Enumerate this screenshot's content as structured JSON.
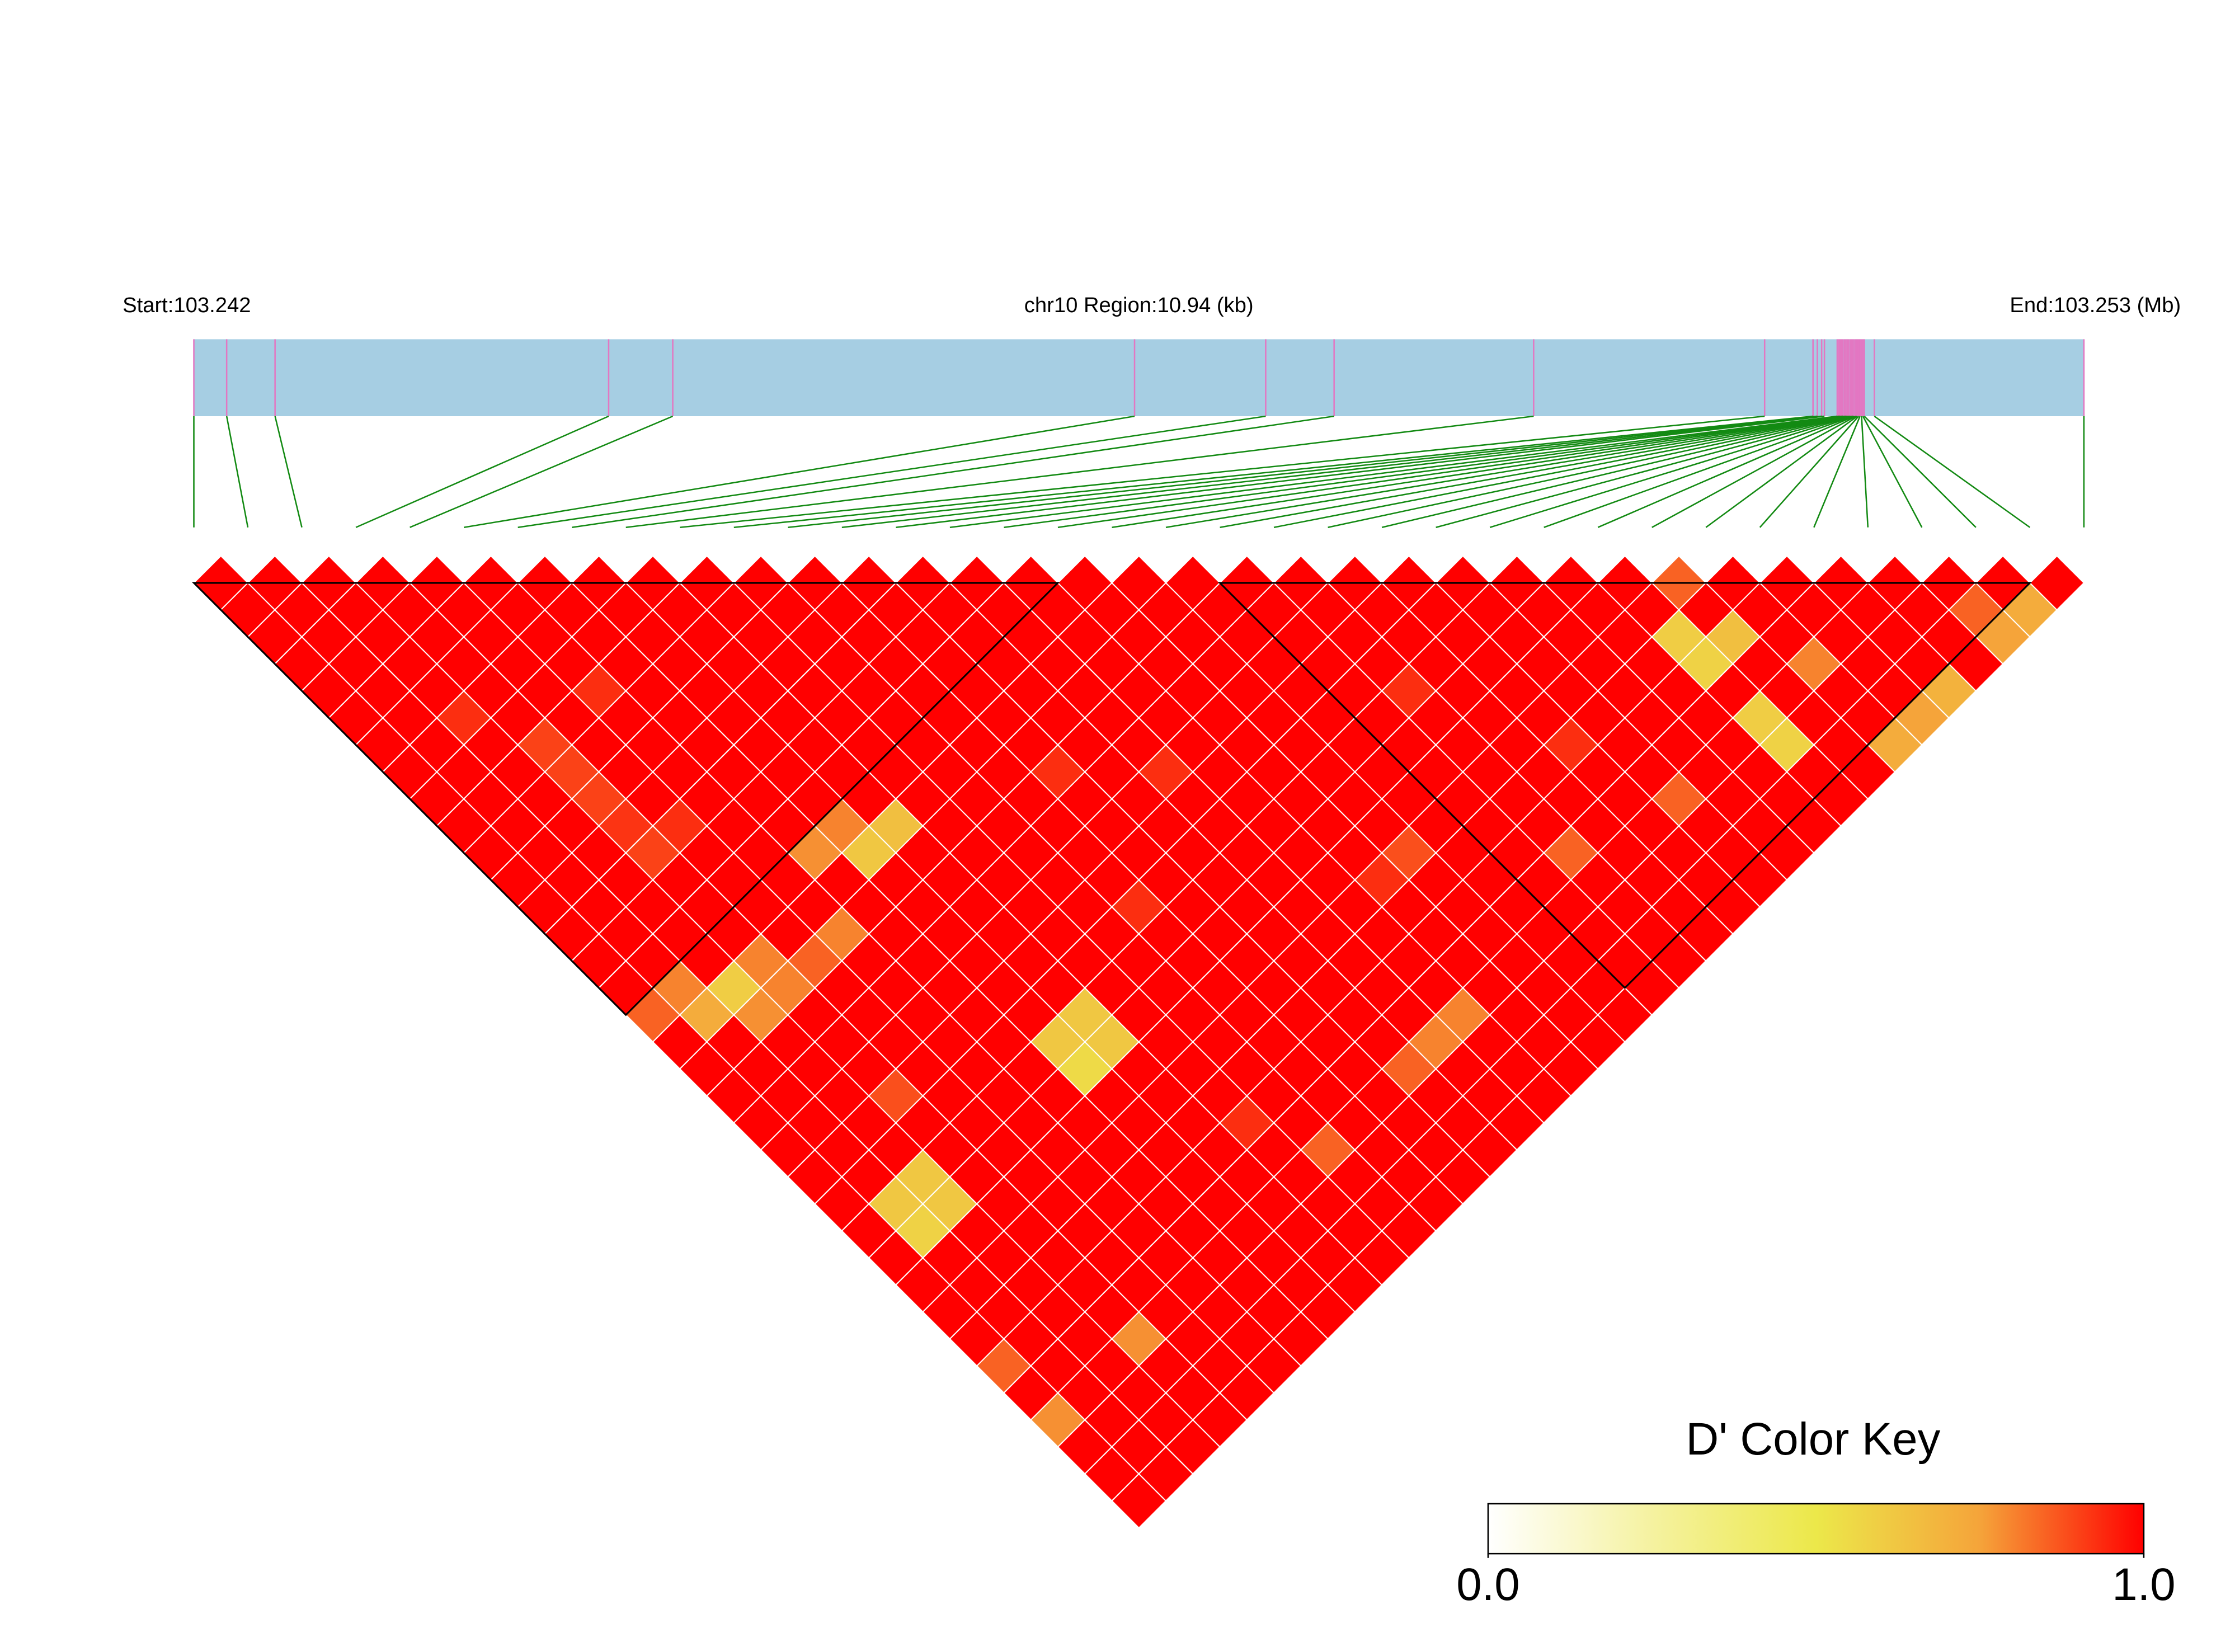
{
  "chart_data": {
    "type": "ld-heatmap",
    "start_label": "Start:103.242",
    "region_label": "chr10 Region:10.94 (kb)",
    "end_label": "End:103.253 (Mb)",
    "xlim": [
      0,
      10.94
    ],
    "positions": [
      0,
      0.19,
      0.47,
      2.401,
      2.772,
      5.445,
      6.204,
      6.6,
      7.755,
      9.092,
      9.372,
      9.397,
      9.422,
      9.438,
      9.512,
      9.521,
      9.529,
      9.537,
      9.545,
      9.554,
      9.562,
      9.57,
      9.578,
      9.587,
      9.595,
      9.603,
      9.611,
      9.62,
      9.628,
      9.636,
      9.644,
      9.653,
      9.661,
      9.669,
      9.727,
      10.94
    ],
    "dprime": [
      [
        1,
        1,
        1,
        1,
        1,
        1,
        1,
        1,
        1,
        1,
        1,
        1,
        1,
        1,
        1,
        1,
        0.85,
        1,
        1,
        1,
        1,
        1,
        1,
        1,
        1,
        1,
        1,
        1,
        1,
        0.85,
        1,
        0.78,
        1,
        1,
        1
      ],
      [
        1,
        1,
        1,
        1,
        1,
        1,
        1,
        1,
        1,
        1,
        1,
        1,
        1,
        1,
        1,
        0.8,
        0.72,
        1,
        1,
        1,
        1,
        1,
        1,
        0.62,
        0.58,
        1,
        1,
        1,
        1,
        1,
        1,
        1,
        1,
        1
      ],
      [
        1,
        1,
        1,
        1,
        1,
        0.93,
        1,
        1,
        1,
        1,
        1,
        1,
        1,
        1,
        1,
        0.6,
        0.78,
        1,
        1,
        1,
        1,
        1,
        0.62,
        0.62,
        1,
        1,
        1,
        1,
        1,
        1,
        1,
        1,
        1
      ],
      [
        1,
        1,
        1,
        1,
        1,
        1,
        0.9,
        0.9,
        0.9,
        0.92,
        0.9,
        1,
        1,
        1,
        0.8,
        0.8,
        1,
        1,
        1,
        0.88,
        1,
        1,
        1,
        1,
        1,
        1,
        1,
        1,
        0.78,
        1,
        1,
        1
      ],
      [
        1,
        1,
        1,
        1,
        1,
        1,
        1,
        1,
        1,
        0.93,
        1,
        1,
        1,
        1,
        0.85,
        1,
        1,
        1,
        1,
        1,
        1,
        1,
        1,
        1,
        1,
        1,
        1,
        1,
        1,
        1,
        1
      ],
      [
        1,
        1,
        1,
        1,
        0.93,
        1,
        1,
        1,
        1,
        1,
        1,
        1,
        1,
        0.8,
        1,
        1,
        1,
        1,
        1,
        1,
        1,
        1,
        1,
        1,
        1,
        1,
        1,
        1,
        1,
        1
      ],
      [
        1,
        1,
        1,
        1,
        1,
        1,
        1,
        1,
        1,
        1,
        0.78,
        1,
        1,
        1,
        1,
        1,
        1,
        1,
        1,
        1,
        1,
        1,
        1,
        1,
        1,
        1,
        1,
        1,
        1
      ],
      [
        1,
        1,
        1,
        1,
        1,
        1,
        1,
        1,
        1,
        0.8,
        0.62,
        1,
        1,
        1,
        1,
        1,
        1,
        0.62,
        0.55,
        1,
        1,
        1,
        1,
        1,
        1,
        1,
        1,
        1
      ],
      [
        1,
        1,
        1,
        1,
        1,
        1,
        1,
        1,
        1,
        0.65,
        1,
        1,
        1,
        1,
        1,
        1,
        0.62,
        0.62,
        1,
        1,
        1,
        1,
        1,
        1,
        1,
        1,
        1
      ],
      [
        1,
        1,
        1,
        1,
        1,
        1,
        1,
        1,
        1,
        1,
        1,
        1,
        1,
        1,
        1,
        1,
        1,
        1,
        1,
        1,
        0.93,
        1,
        1,
        1,
        1,
        1
      ],
      [
        1,
        1,
        1,
        1,
        1,
        1,
        1,
        1,
        1,
        1,
        1,
        1,
        1,
        1,
        1,
        1,
        1,
        1,
        1,
        1,
        1,
        0.85,
        1,
        1,
        1
      ],
      [
        1,
        1,
        1,
        1,
        1,
        1,
        1,
        1,
        1,
        1,
        1,
        1,
        0.93,
        1,
        1,
        1,
        1,
        1,
        1,
        1,
        1,
        1,
        1,
        1
      ],
      [
        1,
        1,
        1,
        1,
        1,
        1,
        1,
        0.93,
        1,
        1,
        1,
        1,
        1,
        1,
        1,
        1,
        1,
        1,
        1,
        1,
        1,
        1,
        1
      ],
      [
        1,
        1,
        1,
        1,
        1,
        1,
        1,
        1,
        1,
        1,
        1,
        1,
        1,
        1,
        1,
        1,
        1,
        1,
        0.85,
        1,
        1,
        1
      ],
      [
        1,
        1,
        1,
        1,
        1,
        1,
        1,
        0.93,
        1,
        1,
        1,
        1,
        1,
        1,
        1,
        1,
        1,
        0.8,
        1,
        1,
        1
      ],
      [
        1,
        1,
        1,
        1,
        1,
        1,
        1,
        1,
        1,
        1,
        1,
        1,
        1,
        1,
        1,
        1,
        0.8,
        1,
        1,
        1
      ],
      [
        1,
        1,
        1,
        1,
        1,
        1,
        1,
        1,
        1,
        1,
        1,
        0.93,
        1,
        1,
        1,
        1,
        1,
        1,
        1
      ],
      [
        1,
        1,
        1,
        1,
        1,
        1,
        1,
        1,
        1,
        1,
        0.88,
        1,
        1,
        1,
        1,
        1,
        1,
        1
      ],
      [
        1,
        1,
        1,
        1,
        1,
        1,
        1,
        1,
        1,
        1,
        1,
        1,
        1,
        1,
        1,
        1,
        1
      ],
      [
        1,
        1,
        1,
        1,
        1,
        1,
        1,
        1,
        1,
        1,
        1,
        1,
        1,
        1,
        1,
        1
      ],
      [
        1,
        1,
        1,
        1,
        0.93,
        1,
        1,
        1,
        1,
        1,
        0.85,
        1,
        1,
        1,
        1
      ],
      [
        1,
        1,
        1,
        1,
        1,
        1,
        1,
        1,
        1,
        1,
        1,
        1,
        1,
        1
      ],
      [
        1,
        1,
        1,
        1,
        1,
        1,
        0.93,
        1,
        1,
        1,
        1,
        1,
        1
      ],
      [
        1,
        1,
        1,
        1,
        1,
        1,
        1,
        1,
        0.85,
        1,
        1,
        1
      ],
      [
        1,
        1,
        1,
        1,
        1,
        1,
        1,
        1,
        1,
        1,
        1
      ],
      [
        1,
        1,
        1,
        1,
        1,
        1,
        1,
        1,
        1,
        1
      ],
      [
        1,
        1,
        0.6,
        0.58,
        1,
        0.6,
        0.58,
        1,
        1
      ],
      [
        0.85,
        1,
        0.65,
        1,
        1,
        1,
        1,
        1
      ],
      [
        1,
        1,
        1,
        0.8,
        1,
        1,
        0.72
      ],
      [
        1,
        1,
        1,
        1,
        1,
        0.75
      ],
      [
        1,
        1,
        1,
        1,
        0.7
      ],
      [
        1,
        1,
        1,
        1
      ],
      [
        1,
        0.85,
        0.75
      ],
      [
        1,
        0.72
      ],
      [
        1
      ]
    ],
    "blocks": [
      [
        0,
        16
      ],
      [
        19,
        34
      ]
    ],
    "colorbar": {
      "title": "D' Color Key",
      "lim": [
        0,
        1
      ],
      "ticks": [
        {
          "value": 0,
          "label": "0.0"
        },
        {
          "value": 1,
          "label": "1.0"
        }
      ],
      "colors": [
        "#ffffff",
        "#f5f2a0",
        "#ece84a",
        "#f5a43a",
        "#ff0000"
      ]
    }
  }
}
